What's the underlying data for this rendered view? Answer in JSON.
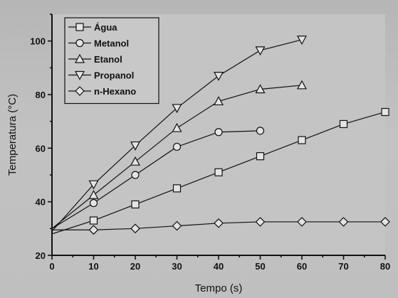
{
  "chart_data": {
    "type": "line",
    "title": "",
    "xlabel": "Tempo (s)",
    "ylabel": "Temperatura (°C)",
    "xlim": [
      0,
      80
    ],
    "ylim": [
      20,
      110
    ],
    "xticks": [
      0,
      10,
      20,
      30,
      40,
      50,
      60,
      70,
      80
    ],
    "yticks": [
      20,
      40,
      60,
      80,
      100
    ],
    "grid": false,
    "legend_position": "top-left",
    "series": [
      {
        "name": "Água",
        "marker": "square",
        "x": [
          0,
          10,
          20,
          30,
          40,
          50,
          60,
          70,
          80
        ],
        "y": [
          28,
          33,
          39,
          45,
          51,
          57,
          63,
          69,
          73.5
        ]
      },
      {
        "name": "Metanol",
        "marker": "circle",
        "x": [
          0,
          10,
          20,
          30,
          40,
          50
        ],
        "y": [
          30,
          39.5,
          50,
          60.5,
          66,
          66.5
        ]
      },
      {
        "name": "Etanol",
        "marker": "triangle-up",
        "x": [
          0,
          10,
          20,
          30,
          40,
          50,
          60
        ],
        "y": [
          30,
          42.5,
          55,
          67.5,
          77.5,
          82,
          83.5
        ]
      },
      {
        "name": "Propanol",
        "marker": "triangle-down",
        "x": [
          0,
          10,
          20,
          30,
          40,
          50,
          60
        ],
        "y": [
          29,
          46.5,
          61,
          75,
          87,
          96.5,
          100.5
        ]
      },
      {
        "name": "n-Hexano",
        "marker": "diamond",
        "x": [
          0,
          10,
          20,
          30,
          40,
          50,
          60,
          70,
          80
        ],
        "y": [
          29.5,
          29.5,
          30,
          31,
          32,
          32.5,
          32.5,
          32.5,
          32.5
        ]
      }
    ]
  }
}
